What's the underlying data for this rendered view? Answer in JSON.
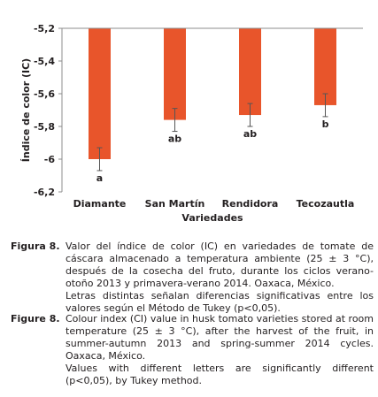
{
  "chart_data": {
    "type": "bar",
    "ylabel": "Índice de color (IC)",
    "xlabel": "Variedades",
    "categories": [
      "Diamante",
      "San Martín",
      "Rendidora",
      "Tecozautla"
    ],
    "values": [
      -6.0,
      -5.76,
      -5.73,
      -5.67
    ],
    "errors": [
      0.07,
      0.07,
      0.07,
      0.07
    ],
    "letters": [
      "a",
      "ab",
      "ab",
      "b"
    ],
    "ylim": [
      -6.2,
      -5.2
    ],
    "yticks": [
      -5.2,
      -5.4,
      -5.6,
      -5.8,
      -6.0,
      -6.2
    ],
    "ytick_labels": [
      "-5,2",
      "-5,4",
      "-5,6",
      "-5,8",
      "-6",
      "-6,2"
    ],
    "bar_color": "#e8552b",
    "grid": false,
    "legend": "none"
  },
  "caption_es": {
    "label": "Figura 8.",
    "text": "Valor del índice de color (IC) en variedades de tomate de cáscara almacenado a temperatura ambiente (25 ± 3 °C), después de la cosecha del fruto, durante los ciclos verano-otoño 2013 y primavera-verano 2014. Oaxaca, México.",
    "note": "Letras distintas señalan diferencias significativas entre los valores según el Método de Tukey (p<0,05)."
  },
  "caption_en": {
    "label": "Figure 8.",
    "text": "Colour index (CI) value in husk tomato varieties stored at room temperature (25 ± 3 °C), after the harvest of the fruit, in summer-autumn 2013 and spring-summer 2014 cycles. Oaxaca, México.",
    "note": "Values with different letters are significantly different (p<0,05), by Tukey method."
  }
}
